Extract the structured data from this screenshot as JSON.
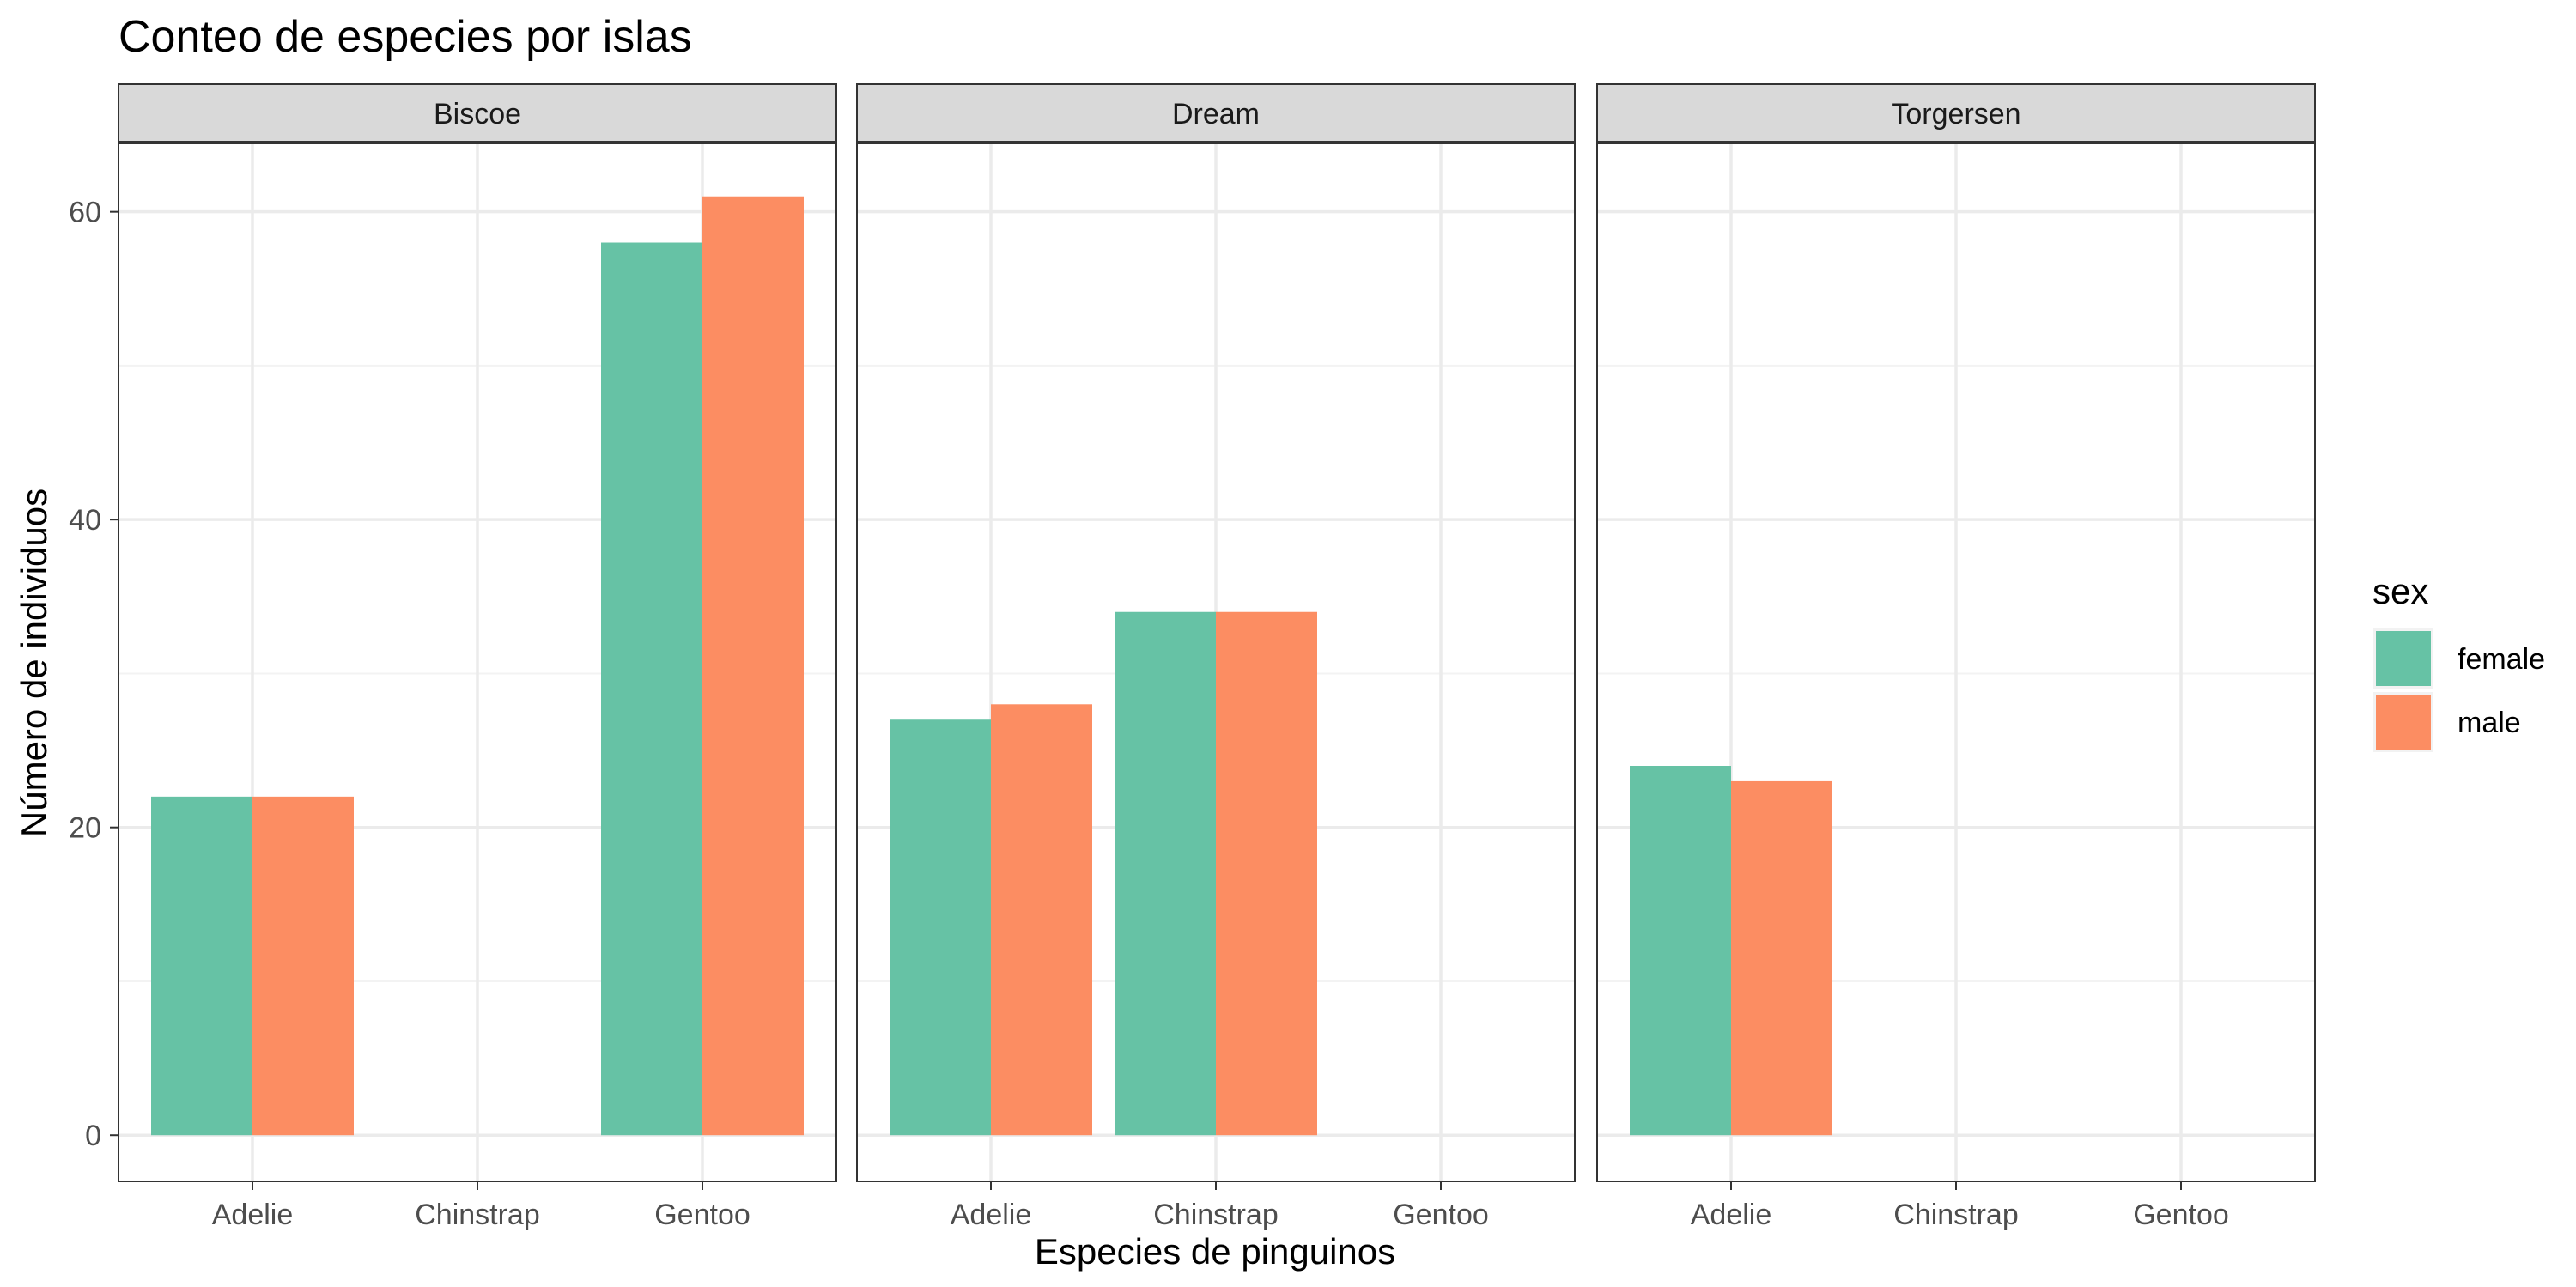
{
  "chart_data": {
    "type": "bar",
    "title": "Conteo de especies por islas",
    "xlabel": "Especies de pinguinos",
    "ylabel": "Número de individuos",
    "categories": [
      "Adelie",
      "Chinstrap",
      "Gentoo"
    ],
    "ylim": [
      -3,
      64.5
    ],
    "yticks": [
      0,
      20,
      40,
      60
    ],
    "grid": true,
    "legend": {
      "title": "sex",
      "position": "right",
      "entries": [
        {
          "label": "female",
          "color": "#66C2A5"
        },
        {
          "label": "male",
          "color": "#FC8D62"
        }
      ]
    },
    "facets": [
      {
        "name": "Biscoe",
        "series": [
          {
            "name": "female",
            "values": [
              22,
              null,
              58
            ]
          },
          {
            "name": "male",
            "values": [
              22,
              null,
              61
            ]
          }
        ]
      },
      {
        "name": "Dream",
        "series": [
          {
            "name": "female",
            "values": [
              27,
              34,
              null
            ]
          },
          {
            "name": "male",
            "values": [
              28,
              34,
              null
            ]
          }
        ]
      },
      {
        "name": "Torgersen",
        "series": [
          {
            "name": "female",
            "values": [
              24,
              null,
              null
            ]
          },
          {
            "name": "male",
            "values": [
              23,
              null,
              null
            ]
          }
        ]
      }
    ]
  },
  "colors": {
    "female": "#66C2A5",
    "male": "#FC8D62",
    "strip_bg": "#D9D9D9",
    "grid_major": "#EBEBEB",
    "grid_minor": "#F3F3F3",
    "panel_border": "#333333"
  }
}
